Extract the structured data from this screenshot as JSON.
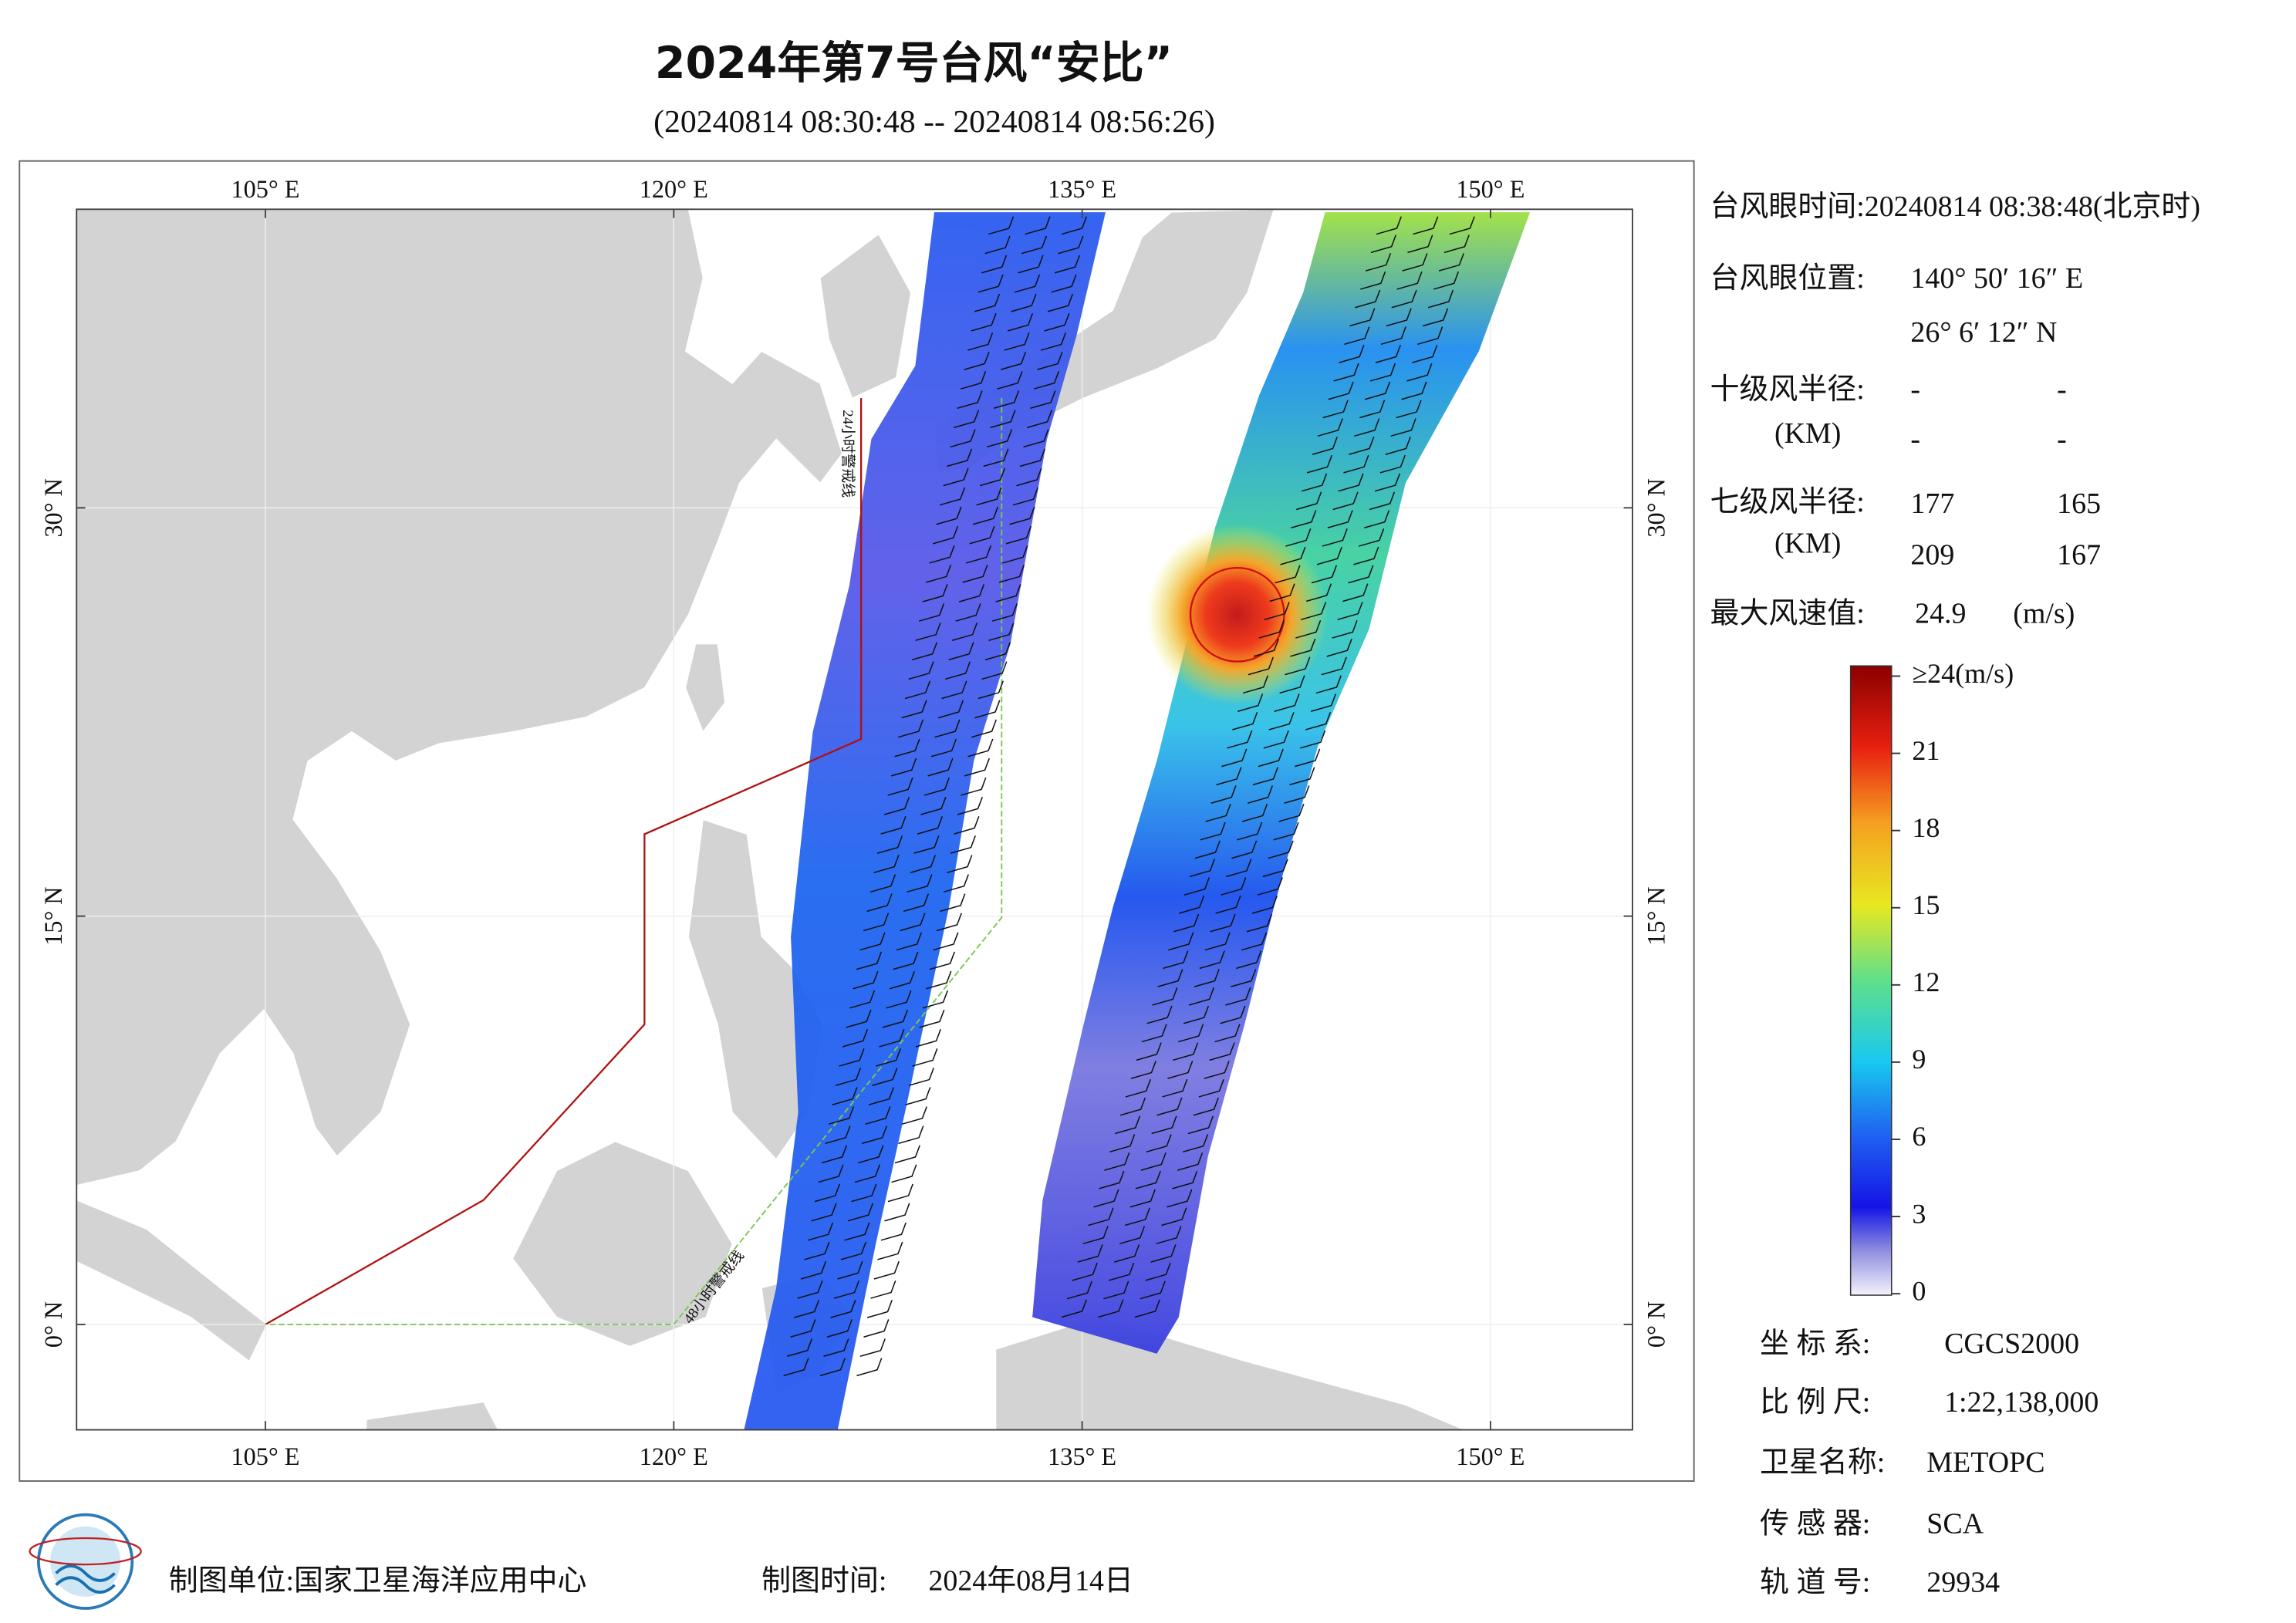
{
  "header": {
    "title": "2024年第7号台风“安比”",
    "subtitle": "(20240814 08:30:48 -- 20240814 08:56:26)"
  },
  "map": {
    "lon_ticks": [
      {
        "value": 105,
        "label": "105° E"
      },
      {
        "value": 120,
        "label": "120° E"
      },
      {
        "value": 135,
        "label": "135° E"
      },
      {
        "value": 150,
        "label": "150° E"
      }
    ],
    "lat_ticks": [
      {
        "value": 0,
        "label": "0° N"
      },
      {
        "value": 15,
        "label": "15° N"
      },
      {
        "value": 30,
        "label": "30° N"
      }
    ],
    "warning_24h": "24小时警戒线",
    "warning_48h": "48小时警戒线"
  },
  "info": {
    "eye_time": "台风眼时间:20240814 08:38:48(北京时)",
    "eye_position_label": "台风眼位置:",
    "eye_longitude": "140° 50′ 16″ E",
    "eye_latitude": "26° 6′ 12″ N",
    "r10_label": "十级风半径:",
    "r10_unit": "(KM)",
    "r10_values": [
      "-",
      "-",
      "-",
      "-"
    ],
    "r7_label": "七级风半径:",
    "r7_unit": "(KM)",
    "r7_values": [
      "177",
      "165",
      "209",
      "167"
    ],
    "max_wind_label": "最大风速值:",
    "max_wind_value": "24.9",
    "max_wind_unit": "(m/s)"
  },
  "colorbar": {
    "range": [
      0,
      24
    ],
    "ticks": [
      {
        "value": 24,
        "label": "≥24(m/s)"
      },
      21,
      18,
      15,
      12,
      9,
      6,
      3,
      0
    ]
  },
  "meta": [
    {
      "label": "坐 标 系:",
      "value": "CGCS2000"
    },
    {
      "label": "比 例 尺:",
      "value": "1:22,138,000"
    },
    {
      "label": "卫星名称:",
      "value": "METOPC"
    },
    {
      "label": "传 感 器:",
      "value": "SCA"
    },
    {
      "label": "轨 道 号:",
      "value": "29934"
    }
  ],
  "footer": {
    "maker": "制图单位:国家卫星海洋应用中心",
    "made_time_label": "制图时间:",
    "made_time": "2024年08月14日"
  }
}
